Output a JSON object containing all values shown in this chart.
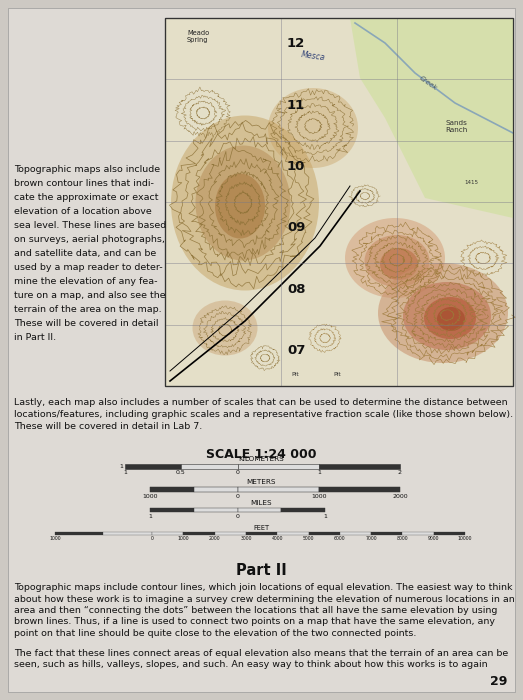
{
  "bg_color": "#cdc9c3",
  "page_bg": "#dedad5",
  "title_scale": "SCALE 1:24 000",
  "part2_title": "Part II",
  "page_number": "29",
  "left_text_lines": [
    "Topographic maps also include",
    "brown contour lines that indi-",
    "cate the approximate or exact",
    "elevation of a location above",
    "sea level. These lines are based",
    "on surveys, aerial photographs,",
    "and satellite data, and can be",
    "used by a map reader to deter-",
    "mine the elevation of any fea-",
    "ture on a map, and also see the",
    "terrain of the area on the map.",
    "These will be covered in detail",
    "in Part II."
  ],
  "lastly_text": "Lastly, each map also includes a number of scales that can be used to determine the distance between locations/features, including graphic scales and a representative fraction scale (like those shown below). These will be covered in detail in Lab 7.",
  "part2_para1_lines": [
    "Topographic maps include contour lines, which join locations of equal elevation. The easiest way to think",
    "about how these work is to imagine a survey crew determining the elevation of numerous locations in an",
    "area and then “connecting the dots” between the locations that all have the same elevation by using",
    "brown lines. Thus, if a line is used to connect two points on a map that have the same elevation, any",
    "point on that line should be quite close to the elevation of the two connected points."
  ],
  "part2_para2_lines": [
    "The fact that these lines connect areas of equal elevation also means that the terrain of an area can be",
    "seen, such as hills, valleys, slopes, and such. An easy way to think about how this works is to again"
  ],
  "lastly_lines": [
    "Lastly, each map also includes a number of scales that can be used to determine the distance between",
    "locations/features, including graphic scales and a representative fraction scale (like those shown below).",
    "These will be covered in detail in Lab 7."
  ],
  "map_grid_labels": [
    "12",
    "11",
    "10",
    "09",
    "08",
    "07"
  ],
  "scale_km_label": "KILOMETERS",
  "scale_m_label": "METERS",
  "scale_mi_label": "MILES",
  "scale_ft_label": "FEET",
  "font_size_body": 6.8,
  "font_size_small": 5.0,
  "font_size_title": 9.0,
  "font_size_part": 10.5
}
